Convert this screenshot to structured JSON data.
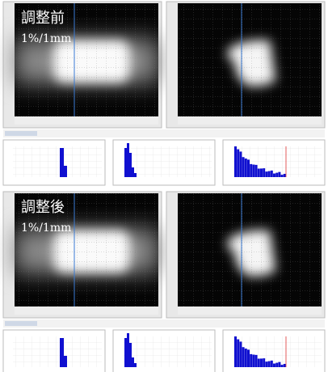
{
  "panels": [
    {
      "title": "調整前",
      "setting": "1%/1mm"
    },
    {
      "title": "調整後",
      "setting": "1%/1mm"
    }
  ]
}
